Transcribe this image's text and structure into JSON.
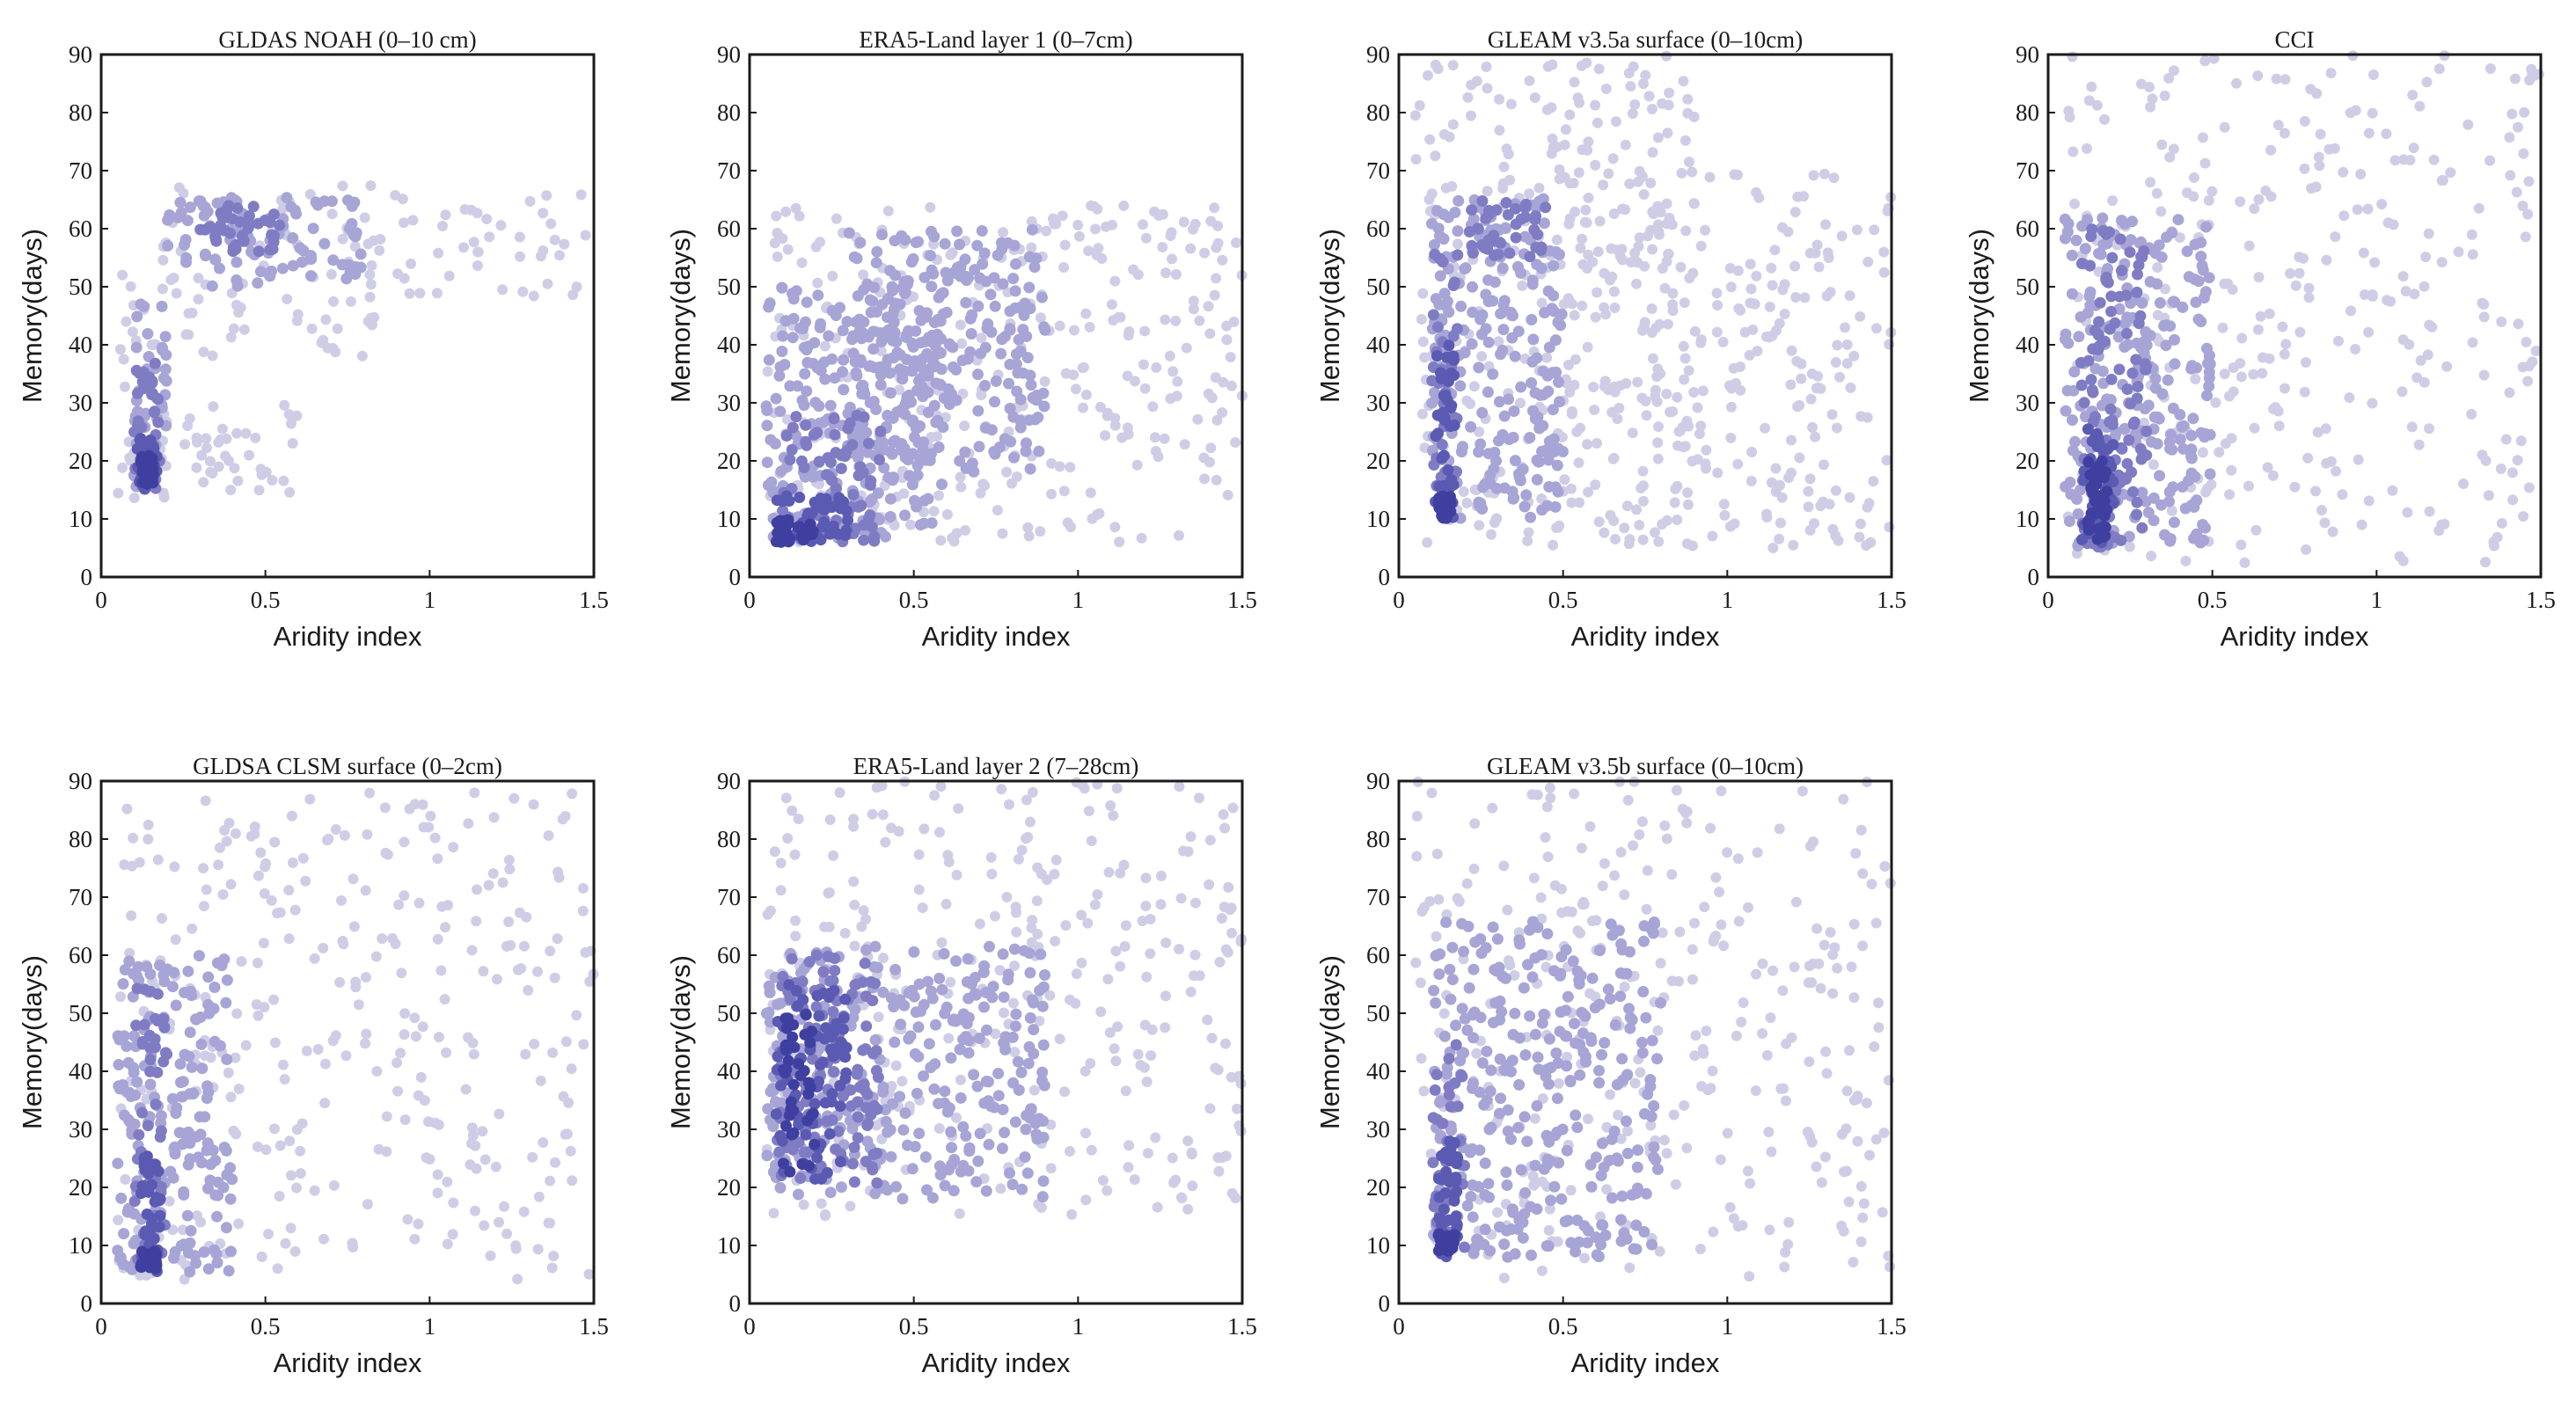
{
  "figure": {
    "colors": {
      "light": "#cfcde6",
      "mid": "#a7a4d6",
      "dark": "#7f7cc4",
      "darker": "#5a5ab2",
      "darkest": "#3f3fa0"
    }
  },
  "chart_data": [
    {
      "type": "scatter",
      "title": "GLDAS NOAH (0–10 cm)",
      "xlabel": "Aridity index",
      "ylabel": "Memory(days)",
      "xlim": [
        0,
        1.5
      ],
      "ylim": [
        0,
        90
      ],
      "xticks": [
        "0",
        "0.5",
        "1",
        "1.5"
      ],
      "yticks": [
        "0",
        "10",
        "20",
        "30",
        "40",
        "50",
        "60",
        "70",
        "80",
        "90"
      ],
      "clusters": [
        {
          "x": [
            0.05,
            0.2
          ],
          "y": [
            12,
            60
          ],
          "level": 1
        },
        {
          "x": [
            0.2,
            0.9
          ],
          "y": [
            38,
            68
          ],
          "level": 1
        },
        {
          "x": [
            0.9,
            1.5
          ],
          "y": [
            48,
            66
          ],
          "level": 1
        },
        {
          "x": [
            0.25,
            0.6
          ],
          "y": [
            14,
            30
          ],
          "level": 1
        },
        {
          "x": [
            0.1,
            0.2
          ],
          "y": [
            14,
            48
          ],
          "level": 2
        },
        {
          "x": [
            0.2,
            0.8
          ],
          "y": [
            50,
            66
          ],
          "level": 2
        },
        {
          "x": [
            0.1,
            0.18
          ],
          "y": [
            15,
            38
          ],
          "level": 3
        },
        {
          "x": [
            0.3,
            0.55
          ],
          "y": [
            56,
            64
          ],
          "level": 3
        },
        {
          "x": [
            0.11,
            0.17
          ],
          "y": [
            15,
            24
          ],
          "level": 4
        },
        {
          "x": [
            0.12,
            0.16
          ],
          "y": [
            16,
            21
          ],
          "level": 5
        }
      ]
    },
    {
      "type": "scatter",
      "title": "ERA5-Land layer 1 (0–7cm)",
      "xlabel": "Aridity index",
      "ylabel": "Memory(days)",
      "xlim": [
        0,
        1.5
      ],
      "ylim": [
        0,
        90
      ],
      "xticks": [
        "0",
        "0.5",
        "1",
        "1.5"
      ],
      "yticks": [
        "0",
        "10",
        "20",
        "30",
        "40",
        "50",
        "60",
        "70",
        "80",
        "90"
      ],
      "clusters": [
        {
          "x": [
            0.05,
            1.5
          ],
          "y": [
            6,
            64
          ],
          "level": 1
        },
        {
          "x": [
            0.05,
            0.6
          ],
          "y": [
            6,
            50
          ],
          "level": 2
        },
        {
          "x": [
            0.3,
            0.9
          ],
          "y": [
            18,
            60
          ],
          "level": 2
        },
        {
          "x": [
            0.08,
            0.4
          ],
          "y": [
            6,
            28
          ],
          "level": 3
        },
        {
          "x": [
            0.08,
            0.3
          ],
          "y": [
            6,
            14
          ],
          "level": 4
        },
        {
          "x": [
            0.08,
            0.2
          ],
          "y": [
            6,
            10
          ],
          "level": 5
        }
      ]
    },
    {
      "type": "scatter",
      "title": "GLEAM v3.5a surface (0–10cm)",
      "xlabel": "Aridity index",
      "ylabel": "Memory(days)",
      "xlim": [
        0,
        1.5
      ],
      "ylim": [
        0,
        90
      ],
      "xticks": [
        "0",
        "0.5",
        "1",
        "1.5"
      ],
      "yticks": [
        "0",
        "10",
        "20",
        "30",
        "40",
        "50",
        "60",
        "70",
        "80",
        "90"
      ],
      "clusters": [
        {
          "x": [
            0.05,
            0.9
          ],
          "y": [
            5,
            90
          ],
          "level": 1
        },
        {
          "x": [
            0.5,
            1.5
          ],
          "y": [
            5,
            70
          ],
          "level": 1
        },
        {
          "x": [
            0.1,
            0.5
          ],
          "y": [
            10,
            66
          ],
          "level": 2
        },
        {
          "x": [
            0.1,
            0.18
          ],
          "y": [
            10,
            56
          ],
          "level": 3
        },
        {
          "x": [
            0.2,
            0.45
          ],
          "y": [
            55,
            65
          ],
          "level": 3
        },
        {
          "x": [
            0.11,
            0.17
          ],
          "y": [
            10,
            40
          ],
          "level": 4
        },
        {
          "x": [
            0.12,
            0.16
          ],
          "y": [
            10,
            14
          ],
          "level": 5
        }
      ]
    },
    {
      "type": "scatter",
      "title": "CCI",
      "xlabel": "Aridity index",
      "ylabel": "Memory(days)",
      "xlim": [
        0,
        1.5
      ],
      "ylim": [
        0,
        90
      ],
      "xticks": [
        "0",
        "0.5",
        "1",
        "1.5"
      ],
      "yticks": [
        "0",
        "10",
        "20",
        "30",
        "40",
        "50",
        "60",
        "70",
        "80",
        "90"
      ],
      "clusters": [
        {
          "x": [
            0.05,
            1.5
          ],
          "y": [
            2,
            90
          ],
          "level": 1
        },
        {
          "x": [
            0.05,
            0.5
          ],
          "y": [
            5,
            62
          ],
          "level": 2
        },
        {
          "x": [
            0.1,
            0.3
          ],
          "y": [
            5,
            60
          ],
          "level": 3
        },
        {
          "x": [
            0.1,
            0.2
          ],
          "y": [
            5,
            26
          ],
          "level": 4
        },
        {
          "x": [
            0.12,
            0.18
          ],
          "y": [
            6,
            20
          ],
          "level": 5
        }
      ]
    },
    {
      "type": "scatter",
      "title": "GLDSA CLSM surface (0–2cm)",
      "xlabel": "Aridity index",
      "ylabel": "Memory(days)",
      "xlim": [
        0,
        1.5
      ],
      "ylim": [
        0,
        90
      ],
      "xticks": [
        "0",
        "0.5",
        "1",
        "1.5"
      ],
      "yticks": [
        "0",
        "10",
        "20",
        "30",
        "40",
        "50",
        "60",
        "70",
        "80",
        "90"
      ],
      "clusters": [
        {
          "x": [
            0.05,
            1.5
          ],
          "y": [
            4,
            88
          ],
          "level": 1
        },
        {
          "x": [
            0.05,
            0.4
          ],
          "y": [
            5,
            60
          ],
          "level": 2
        },
        {
          "x": [
            0.1,
            0.2
          ],
          "y": [
            5,
            55
          ],
          "level": 3
        },
        {
          "x": [
            0.12,
            0.18
          ],
          "y": [
            5,
            26
          ],
          "level": 4
        },
        {
          "x": [
            0.12,
            0.17
          ],
          "y": [
            6,
            9
          ],
          "level": 5
        }
      ]
    },
    {
      "type": "scatter",
      "title": "ERA5-Land layer 2 (7–28cm)",
      "xlabel": "Aridity index",
      "ylabel": "Memory(days)",
      "xlim": [
        0,
        1.5
      ],
      "ylim": [
        0,
        90
      ],
      "xticks": [
        "0",
        "0.5",
        "1",
        "1.5"
      ],
      "yticks": [
        "0",
        "10",
        "20",
        "30",
        "40",
        "50",
        "60",
        "70",
        "80",
        "90"
      ],
      "clusters": [
        {
          "x": [
            0.05,
            1.5
          ],
          "y": [
            15,
            90
          ],
          "level": 1
        },
        {
          "x": [
            0.05,
            0.9
          ],
          "y": [
            18,
            62
          ],
          "level": 2
        },
        {
          "x": [
            0.08,
            0.4
          ],
          "y": [
            20,
            60
          ],
          "level": 3
        },
        {
          "x": [
            0.08,
            0.3
          ],
          "y": [
            20,
            55
          ],
          "level": 4
        },
        {
          "x": [
            0.1,
            0.2
          ],
          "y": [
            22,
            50
          ],
          "level": 5
        }
      ]
    },
    {
      "type": "scatter",
      "title": "GLEAM v3.5b surface (0–10cm)",
      "xlabel": "Aridity index",
      "ylabel": "Memory(days)",
      "xlim": [
        0,
        1.5
      ],
      "ylim": [
        0,
        90
      ],
      "xticks": [
        "0",
        "0.5",
        "1",
        "1.5"
      ],
      "yticks": [
        "0",
        "10",
        "20",
        "30",
        "40",
        "50",
        "60",
        "70",
        "80",
        "90"
      ],
      "clusters": [
        {
          "x": [
            0.05,
            1.5
          ],
          "y": [
            4,
            90
          ],
          "level": 1
        },
        {
          "x": [
            0.1,
            0.8
          ],
          "y": [
            8,
            66
          ],
          "level": 2
        },
        {
          "x": [
            0.1,
            0.2
          ],
          "y": [
            8,
            45
          ],
          "level": 3
        },
        {
          "x": [
            0.12,
            0.18
          ],
          "y": [
            8,
            28
          ],
          "level": 4
        },
        {
          "x": [
            0.12,
            0.17
          ],
          "y": [
            9,
            12
          ],
          "level": 5
        }
      ]
    }
  ]
}
